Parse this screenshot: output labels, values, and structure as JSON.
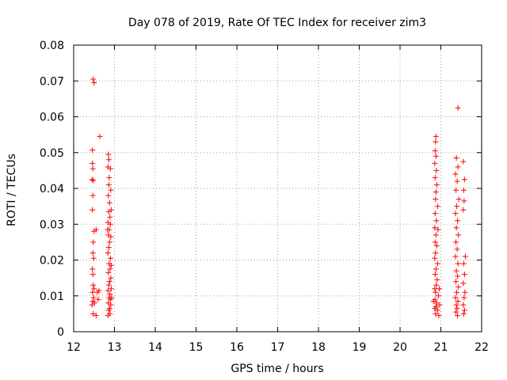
{
  "chart_data": {
    "type": "scatter",
    "title": "Day 078 of 2019, Rate Of TEC Index for receiver zim3",
    "xlabel": "GPS time / hours",
    "ylabel": "ROTI / TECUs",
    "xlim": [
      12,
      22
    ],
    "ylim": [
      0,
      0.08
    ],
    "xticks": [
      "12",
      "13",
      "14",
      "15",
      "16",
      "17",
      "18",
      "19",
      "20",
      "21",
      "22"
    ],
    "yticks": [
      "0",
      "0.01",
      "0.02",
      "0.03",
      "0.04",
      "0.05",
      "0.06",
      "0.07",
      "0.08"
    ],
    "grid": true,
    "legend": "none",
    "marker": "plus",
    "color": "#ff0000",
    "series": [
      {
        "points": [
          [
            12.48,
            0.0705
          ],
          [
            12.5,
            0.0695
          ],
          [
            12.64,
            0.0545
          ],
          [
            12.46,
            0.0507
          ],
          [
            12.46,
            0.047
          ],
          [
            12.47,
            0.0455
          ],
          [
            12.45,
            0.0425
          ],
          [
            12.48,
            0.0422
          ],
          [
            12.47,
            0.038
          ],
          [
            12.46,
            0.034
          ],
          [
            12.5,
            0.028
          ],
          [
            12.55,
            0.0285
          ],
          [
            12.48,
            0.025
          ],
          [
            12.47,
            0.022
          ],
          [
            12.49,
            0.0205
          ],
          [
            12.46,
            0.0175
          ],
          [
            12.47,
            0.016
          ],
          [
            12.48,
            0.013
          ],
          [
            12.5,
            0.012
          ],
          [
            12.46,
            0.011
          ],
          [
            12.49,
            0.0095
          ],
          [
            12.47,
            0.0085
          ],
          [
            12.51,
            0.008
          ],
          [
            12.45,
            0.0075
          ],
          [
            12.48,
            0.005
          ],
          [
            12.55,
            0.0045
          ],
          [
            12.6,
            0.009
          ],
          [
            12.62,
            0.0115
          ],
          [
            12.58,
            0.011
          ],
          [
            12.85,
            0.0495
          ],
          [
            12.86,
            0.048
          ],
          [
            12.84,
            0.046
          ],
          [
            12.9,
            0.0455
          ],
          [
            12.87,
            0.043
          ],
          [
            12.86,
            0.041
          ],
          [
            12.91,
            0.0395
          ],
          [
            12.85,
            0.038
          ],
          [
            12.88,
            0.036
          ],
          [
            12.92,
            0.034
          ],
          [
            12.86,
            0.0335
          ],
          [
            12.89,
            0.032
          ],
          [
            12.84,
            0.0305
          ],
          [
            12.9,
            0.03
          ],
          [
            12.87,
            0.0285
          ],
          [
            12.85,
            0.027
          ],
          [
            12.91,
            0.0265
          ],
          [
            12.88,
            0.025
          ],
          [
            12.86,
            0.0235
          ],
          [
            12.84,
            0.022
          ],
          [
            12.9,
            0.0205
          ],
          [
            12.87,
            0.019
          ],
          [
            12.89,
            0.0175
          ],
          [
            12.85,
            0.0165
          ],
          [
            12.91,
            0.015
          ],
          [
            12.88,
            0.014
          ],
          [
            12.86,
            0.013
          ],
          [
            12.92,
            0.012
          ],
          [
            12.84,
            0.0115
          ],
          [
            12.89,
            0.0105
          ],
          [
            12.87,
            0.0095
          ],
          [
            12.9,
            0.009
          ],
          [
            12.85,
            0.008
          ],
          [
            12.91,
            0.0075
          ],
          [
            12.88,
            0.0065
          ],
          [
            12.86,
            0.006
          ],
          [
            12.89,
            0.005
          ],
          [
            12.84,
            0.0045
          ],
          [
            12.92,
            0.0185
          ],
          [
            12.93,
            0.0095
          ],
          [
            12.83,
            0.0285
          ]
        ]
      },
      {
        "points": [
          [
            21.42,
            0.0625
          ],
          [
            20.88,
            0.0545
          ],
          [
            20.87,
            0.053
          ],
          [
            20.86,
            0.0505
          ],
          [
            20.88,
            0.049
          ],
          [
            20.85,
            0.047
          ],
          [
            20.89,
            0.045
          ],
          [
            20.86,
            0.043
          ],
          [
            20.9,
            0.041
          ],
          [
            20.88,
            0.039
          ],
          [
            20.87,
            0.037
          ],
          [
            20.92,
            0.035
          ],
          [
            20.86,
            0.033
          ],
          [
            20.89,
            0.031
          ],
          [
            20.85,
            0.029
          ],
          [
            20.93,
            0.0285
          ],
          [
            20.88,
            0.027
          ],
          [
            20.86,
            0.025
          ],
          [
            20.9,
            0.024
          ],
          [
            20.87,
            0.022
          ],
          [
            20.85,
            0.0205
          ],
          [
            20.92,
            0.019
          ],
          [
            20.88,
            0.0175
          ],
          [
            20.86,
            0.016
          ],
          [
            20.91,
            0.0145
          ],
          [
            20.89,
            0.013
          ],
          [
            20.85,
            0.012
          ],
          [
            20.87,
            0.011
          ],
          [
            20.94,
            0.01
          ],
          [
            20.86,
            0.009
          ],
          [
            20.9,
            0.008
          ],
          [
            20.88,
            0.007
          ],
          [
            20.85,
            0.0065
          ],
          [
            20.92,
            0.006
          ],
          [
            20.87,
            0.005
          ],
          [
            20.95,
            0.0045
          ],
          [
            20.82,
            0.0085
          ],
          [
            20.96,
            0.012
          ],
          [
            20.97,
            0.0075
          ],
          [
            21.38,
            0.0485
          ],
          [
            21.42,
            0.046
          ],
          [
            21.36,
            0.044
          ],
          [
            21.4,
            0.042
          ],
          [
            21.37,
            0.0395
          ],
          [
            21.44,
            0.037
          ],
          [
            21.39,
            0.035
          ],
          [
            21.36,
            0.033
          ],
          [
            21.41,
            0.031
          ],
          [
            21.38,
            0.029
          ],
          [
            21.43,
            0.027
          ],
          [
            21.37,
            0.025
          ],
          [
            21.4,
            0.023
          ],
          [
            21.36,
            0.021
          ],
          [
            21.42,
            0.019
          ],
          [
            21.38,
            0.017
          ],
          [
            21.41,
            0.0155
          ],
          [
            21.37,
            0.014
          ],
          [
            21.43,
            0.0125
          ],
          [
            21.39,
            0.011
          ],
          [
            21.36,
            0.0095
          ],
          [
            21.42,
            0.0085
          ],
          [
            21.38,
            0.0075
          ],
          [
            21.4,
            0.0065
          ],
          [
            21.37,
            0.0055
          ],
          [
            21.41,
            0.0045
          ],
          [
            21.55,
            0.0475
          ],
          [
            21.58,
            0.0425
          ],
          [
            21.56,
            0.0395
          ],
          [
            21.57,
            0.0365
          ],
          [
            21.55,
            0.034
          ],
          [
            21.6,
            0.021
          ],
          [
            21.56,
            0.019
          ],
          [
            21.58,
            0.016
          ],
          [
            21.55,
            0.0135
          ],
          [
            21.59,
            0.011
          ],
          [
            21.57,
            0.0095
          ],
          [
            21.55,
            0.0075
          ],
          [
            21.58,
            0.006
          ],
          [
            21.56,
            0.005
          ]
        ]
      }
    ]
  }
}
